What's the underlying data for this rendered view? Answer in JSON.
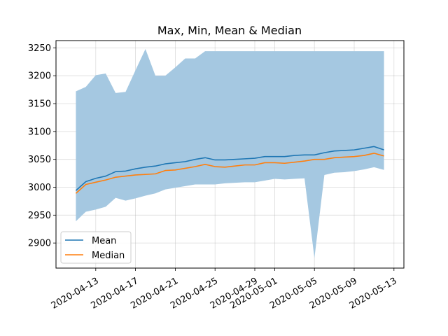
{
  "chart_data": {
    "type": "line",
    "title": "Max, Min, Mean & Median",
    "xlabel": "",
    "ylabel": "",
    "grid": true,
    "legend_position": "bottom-left",
    "x": [
      "2020-04-11",
      "2020-04-12",
      "2020-04-13",
      "2020-04-14",
      "2020-04-15",
      "2020-04-16",
      "2020-04-17",
      "2020-04-18",
      "2020-04-19",
      "2020-04-20",
      "2020-04-21",
      "2020-04-22",
      "2020-04-23",
      "2020-04-24",
      "2020-04-25",
      "2020-04-26",
      "2020-04-27",
      "2020-04-28",
      "2020-04-29",
      "2020-04-30",
      "2020-05-01",
      "2020-05-02",
      "2020-05-03",
      "2020-05-04",
      "2020-05-05",
      "2020-05-06",
      "2020-05-07",
      "2020-05-08",
      "2020-05-09",
      "2020-05-10",
      "2020-05-11",
      "2020-05-12"
    ],
    "band": {
      "max": [
        3172,
        3180,
        3201,
        3204,
        3169,
        3171,
        3210,
        3248,
        3200,
        3200,
        3215,
        3231,
        3231,
        3244,
        3244,
        3244,
        3244,
        3244,
        3244,
        3244,
        3244,
        3244,
        3244,
        3244,
        3244,
        3244,
        3244,
        3244,
        3244,
        3244,
        3244,
        3244
      ],
      "min": [
        2939,
        2956,
        2960,
        2965,
        2981,
        2976,
        2980,
        2985,
        2989,
        2996,
        2999,
        3002,
        3005,
        3005,
        3005,
        3007,
        3008,
        3009,
        3009,
        3012,
        3015,
        3014,
        3015,
        3016,
        2873,
        3022,
        3026,
        3027,
        3029,
        3032,
        3036,
        3031
      ],
      "color": "#a5c8e1"
    },
    "series": [
      {
        "name": "Mean",
        "color": "#1f77b4",
        "values": [
          2994,
          3010,
          3016,
          3020,
          3028,
          3029,
          3033,
          3036,
          3038,
          3042,
          3044,
          3046,
          3050,
          3053,
          3049,
          3049,
          3050,
          3051,
          3052,
          3055,
          3055,
          3055,
          3057,
          3058,
          3058,
          3062,
          3065,
          3066,
          3067,
          3070,
          3073,
          3067
        ]
      },
      {
        "name": "Median",
        "color": "#ff7f0e",
        "values": [
          2989,
          3005,
          3009,
          3013,
          3018,
          3020,
          3022,
          3023,
          3024,
          3030,
          3031,
          3034,
          3037,
          3041,
          3037,
          3036,
          3038,
          3040,
          3040,
          3044,
          3044,
          3043,
          3045,
          3047,
          3050,
          3050,
          3053,
          3054,
          3055,
          3057,
          3061,
          3056
        ]
      }
    ],
    "yticks": [
      2900,
      2950,
      3000,
      3050,
      3100,
      3150,
      3200,
      3250
    ],
    "ylim": [
      2855,
      3263
    ],
    "xlim": [
      "2020-04-09",
      "2020-05-14"
    ],
    "xticks": [
      "2020-04-13",
      "2020-04-17",
      "2020-04-21",
      "2020-04-25",
      "2020-04-29",
      "2020-05-01",
      "2020-05-05",
      "2020-05-09",
      "2020-05-13"
    ]
  }
}
